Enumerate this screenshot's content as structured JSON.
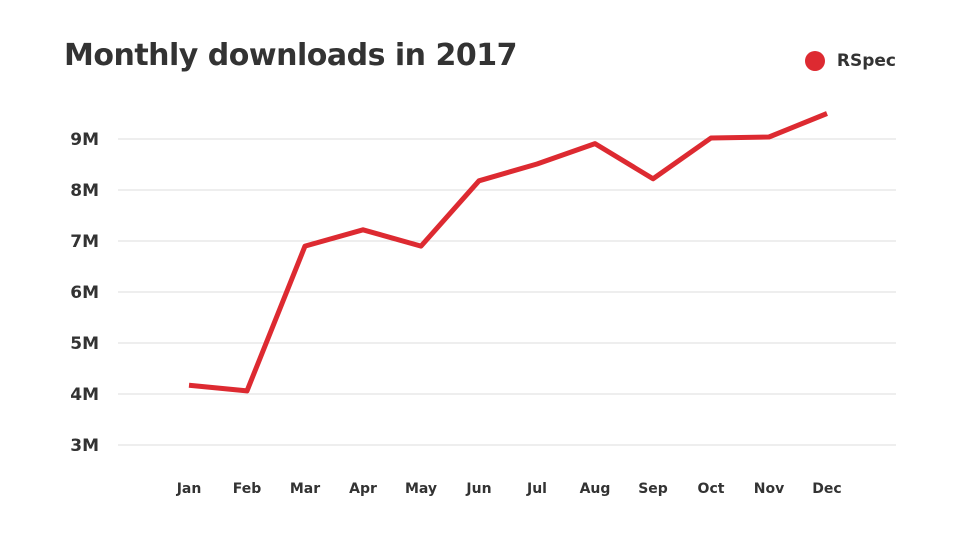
{
  "chart_data": {
    "type": "line",
    "title": "Monthly downloads in 2017",
    "categories": [
      "Jan",
      "Feb",
      "Mar",
      "Apr",
      "May",
      "Jun",
      "Jul",
      "Aug",
      "Sep",
      "Oct",
      "Nov",
      "Dec"
    ],
    "series": [
      {
        "name": "RSpec",
        "color": "#dd2a31",
        "values": [
          4.17,
          4.06,
          6.9,
          7.22,
          6.9,
          8.18,
          8.51,
          8.91,
          8.22,
          9.02,
          9.04,
          9.5
        ]
      }
    ],
    "ylim": [
      3,
      9
    ],
    "yticks": [
      3,
      4,
      5,
      6,
      7,
      8,
      9
    ],
    "ytick_labels": [
      "3M",
      "4M",
      "5M",
      "6M",
      "7M",
      "8M",
      "9M"
    ],
    "grid": "horizontal",
    "legend_position": "top-right",
    "xlabel": "",
    "ylabel": ""
  }
}
